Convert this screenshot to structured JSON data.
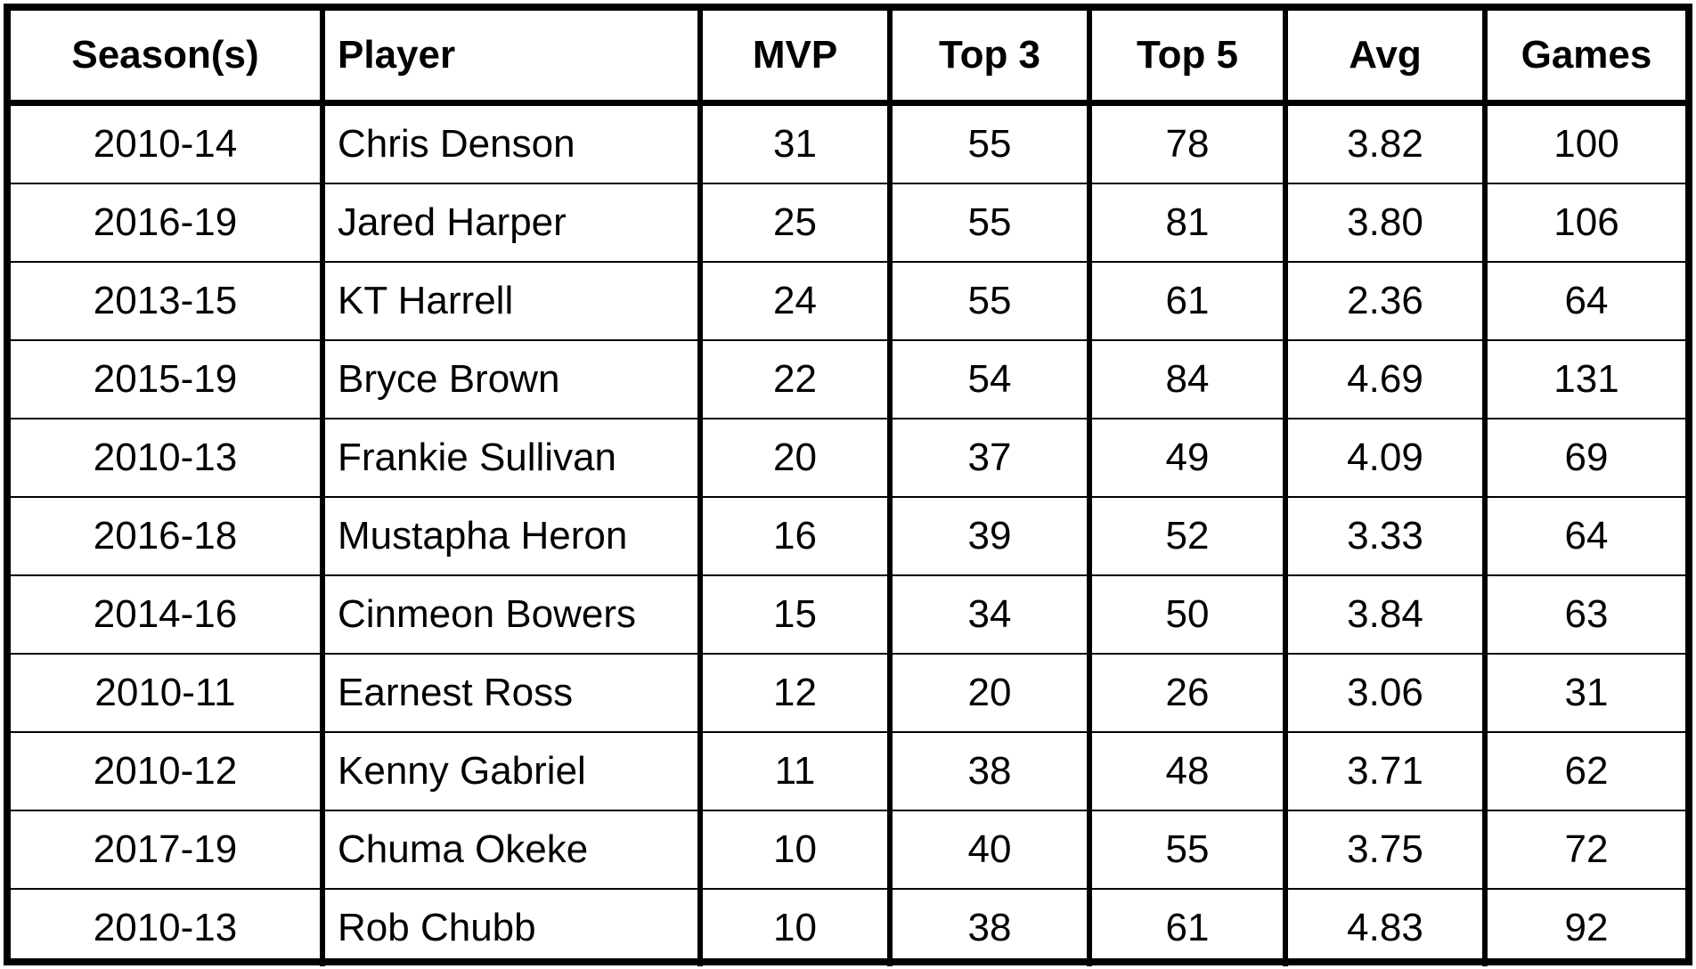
{
  "table": {
    "headers": [
      "Season(s)",
      "Player",
      "MVP",
      "Top 3",
      "Top 5",
      "Avg",
      "Games"
    ],
    "rows": [
      [
        "2010-14",
        "Chris Denson",
        "31",
        "55",
        "78",
        "3.82",
        "100"
      ],
      [
        "2016-19",
        "Jared Harper",
        "25",
        "55",
        "81",
        "3.80",
        "106"
      ],
      [
        "2013-15",
        "KT Harrell",
        "24",
        "55",
        "61",
        "2.36",
        "64"
      ],
      [
        "2015-19",
        "Bryce Brown",
        "22",
        "54",
        "84",
        "4.69",
        "131"
      ],
      [
        "2010-13",
        "Frankie Sullivan",
        "20",
        "37",
        "49",
        "4.09",
        "69"
      ],
      [
        "2016-18",
        "Mustapha Heron",
        "16",
        "39",
        "52",
        "3.33",
        "64"
      ],
      [
        "2014-16",
        "Cinmeon Bowers",
        "15",
        "34",
        "50",
        "3.84",
        "63"
      ],
      [
        "2010-11",
        "Earnest Ross",
        "12",
        "20",
        "26",
        "3.06",
        "31"
      ],
      [
        "2010-12",
        "Kenny Gabriel",
        "11",
        "38",
        "48",
        "3.71",
        "62"
      ],
      [
        "2017-19",
        "Chuma Okeke",
        "10",
        "40",
        "55",
        "3.75",
        "72"
      ],
      [
        "2010-13",
        "Rob Chubb",
        "10",
        "38",
        "61",
        "4.83",
        "92"
      ]
    ]
  }
}
